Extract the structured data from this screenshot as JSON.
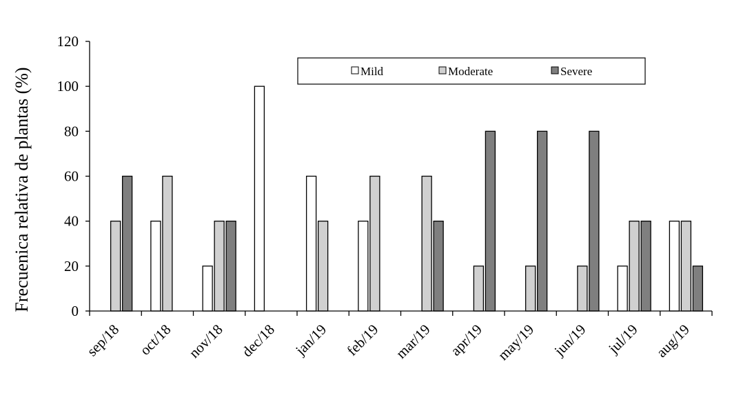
{
  "chart_data": {
    "type": "bar",
    "title": "",
    "xlabel": "",
    "ylabel": "Frecuenica relativa de plantas (%)",
    "ylim": [
      0,
      120
    ],
    "yticks": [
      0,
      20,
      40,
      60,
      80,
      100,
      120
    ],
    "grid": false,
    "legend_position": "top-center",
    "categories": [
      "sep/18",
      "oct/18",
      "nov/18",
      "dec/18",
      "jan/19",
      "feb/19",
      "mar/19",
      "apr/19",
      "may/19",
      "jun/19",
      "jul/19",
      "aug/19"
    ],
    "series": [
      {
        "name": "Mild",
        "color": "#ffffff",
        "values": [
          0,
          40,
          20,
          100,
          60,
          40,
          0,
          0,
          0,
          0,
          20,
          40
        ]
      },
      {
        "name": "Moderate",
        "color": "#d0d0d0",
        "values": [
          40,
          60,
          40,
          0,
          40,
          60,
          60,
          20,
          20,
          20,
          40,
          40
        ]
      },
      {
        "name": "Severe",
        "color": "#7f7f7f",
        "values": [
          60,
          0,
          40,
          0,
          0,
          0,
          40,
          80,
          80,
          80,
          40,
          20
        ]
      }
    ]
  }
}
